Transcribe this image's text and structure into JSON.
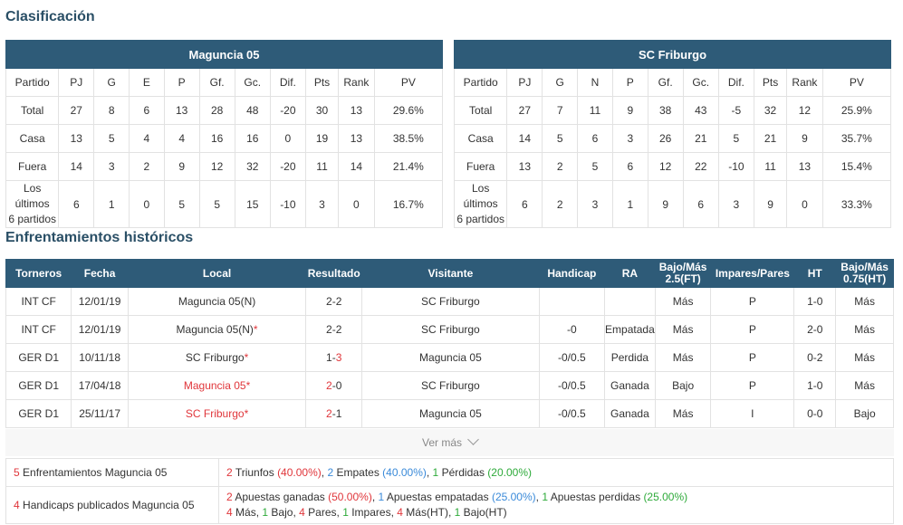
{
  "clasificacion": {
    "title": "Clasificación",
    "columns": [
      "Partido",
      "PJ",
      "G",
      "E",
      "P",
      "Gf.",
      "Gc.",
      "Dif.",
      "Pts",
      "Rank",
      "PV"
    ],
    "home": {
      "team": "Maguncia 05",
      "rows": [
        {
          "label": "Total",
          "vals": [
            "27",
            "8",
            "6",
            "13",
            "28",
            "48",
            "-20",
            "30",
            "13",
            "29.6%"
          ]
        },
        {
          "label": "Casa",
          "vals": [
            "13",
            "5",
            "4",
            "4",
            "16",
            "16",
            "0",
            "19",
            "13",
            "38.5%"
          ]
        },
        {
          "label": "Fuera",
          "vals": [
            "14",
            "3",
            "2",
            "9",
            "12",
            "32",
            "-20",
            "11",
            "14",
            "21.4%"
          ]
        },
        {
          "label1": "Los últimos",
          "label2": "6 partidos",
          "vals": [
            "6",
            "1",
            "0",
            "5",
            "5",
            "15",
            "-10",
            "3",
            "0",
            "16.7%"
          ]
        }
      ]
    },
    "away": {
      "team": "SC Friburgo",
      "columns": [
        "Partido",
        "PJ",
        "G",
        "N",
        "P",
        "Gf.",
        "Gc.",
        "Dif.",
        "Pts",
        "Rank",
        "PV"
      ],
      "rows": [
        {
          "label": "Total",
          "vals": [
            "27",
            "7",
            "11",
            "9",
            "38",
            "43",
            "-5",
            "32",
            "12",
            "25.9%"
          ]
        },
        {
          "label": "Casa",
          "vals": [
            "14",
            "5",
            "6",
            "3",
            "26",
            "21",
            "5",
            "21",
            "9",
            "35.7%"
          ]
        },
        {
          "label": "Fuera",
          "vals": [
            "13",
            "2",
            "5",
            "6",
            "12",
            "22",
            "-10",
            "11",
            "13",
            "15.4%"
          ]
        },
        {
          "label1": "Los últimos",
          "label2": "6 partidos",
          "vals": [
            "6",
            "2",
            "3",
            "1",
            "9",
            "6",
            "3",
            "9",
            "0",
            "33.3%"
          ]
        }
      ]
    }
  },
  "historicos": {
    "title": "Enfrentamientos históricos",
    "headers": [
      "Torneros",
      "Fecha",
      "Local",
      "Resultado",
      "Visitante",
      "Handicap",
      "RA",
      "Bajo/Más",
      "2.5(FT)",
      "Impares/Pares",
      "HT",
      "Bajo/Más",
      "0.75(HT)"
    ],
    "rows": [
      {
        "torneo": "INT CF",
        "fecha": "12/01/19",
        "local": "Maguncia 05(N)",
        "local_star": "",
        "res_l": "2",
        "res_r": "2",
        "visitante": "SC Friburgo",
        "handicap": "",
        "ra": "",
        "bm25": "Más",
        "ip": "P",
        "ht": "1-0",
        "bm075": "Más"
      },
      {
        "torneo": "INT CF",
        "fecha": "12/01/19",
        "local": "Maguncia 05(N)",
        "local_star": "*",
        "res_l": "2",
        "res_r": "2",
        "visitante": "SC Friburgo",
        "handicap": "-0",
        "ra": "Empatada",
        "bm25": "Más",
        "ip": "P",
        "ht": "2-0",
        "bm075": "Más"
      },
      {
        "torneo": "GER D1",
        "fecha": "10/11/18",
        "local": "SC Friburgo",
        "local_star": "*",
        "res_l": "1",
        "res_r": "3",
        "visitante": "Maguncia 05",
        "handicap": "-0/0.5",
        "ra": "Perdida",
        "bm25": "Más",
        "ip": "P",
        "ht": "0-2",
        "bm075": "Más"
      },
      {
        "torneo": "GER D1",
        "fecha": "17/04/18",
        "local": "Maguncia 05",
        "local_star": "*",
        "res_l": "2",
        "res_r": "0",
        "visitante": "SC Friburgo",
        "handicap": "-0/0.5",
        "ra": "Ganada",
        "bm25": "Bajo",
        "ip": "P",
        "ht": "1-0",
        "bm075": "Más"
      },
      {
        "torneo": "GER D1",
        "fecha": "25/11/17",
        "local": "SC Friburgo",
        "local_star": "*",
        "res_l": "2",
        "res_r": "1",
        "visitante": "Maguncia 05",
        "handicap": "-0/0.5",
        "ra": "Ganada",
        "bm25": "Más",
        "ip": "I",
        "ht": "0-0",
        "bm075": "Bajo"
      }
    ],
    "ver_mas": "Ver más"
  },
  "resumen": {
    "r1": {
      "count": "5",
      "label": "Enfrentamientos Maguncia 05",
      "t_n": "2",
      "t_l": "Triunfos",
      "t_p": "(40.00%)",
      "e_n": "2",
      "e_l": "Empates",
      "e_p": "(40.00%)",
      "p_n": "1",
      "p_l": "Pérdidas",
      "p_p": "(20.00%)"
    },
    "r2": {
      "count": "4",
      "label": "Handicaps publicados Maguncia 05",
      "g_n": "2",
      "g_l": "Apuestas ganadas",
      "g_p": "(50.00%)",
      "e_n": "1",
      "e_l": "Apuestas empatadas",
      "e_p": "(25.00%)",
      "p_n": "1",
      "p_l": "Apuestas perdidas",
      "p_p": "(25.00%)",
      "m_n": "4",
      "m_l": "Más,",
      "b_n": "1",
      "b_l": "Bajo,",
      "pa_n": "4",
      "pa_l": "Pares,",
      "i_n": "1",
      "i_l": "Impares,",
      "mh_n": "4",
      "mh_l": "Más(HT),",
      "bh_n": "1",
      "bh_l": "Bajo(HT)"
    }
  },
  "colors": {
    "header": "#2e5b78",
    "red": "#e0363b",
    "blue": "#3a8ad9",
    "green": "#2eaa3a"
  }
}
